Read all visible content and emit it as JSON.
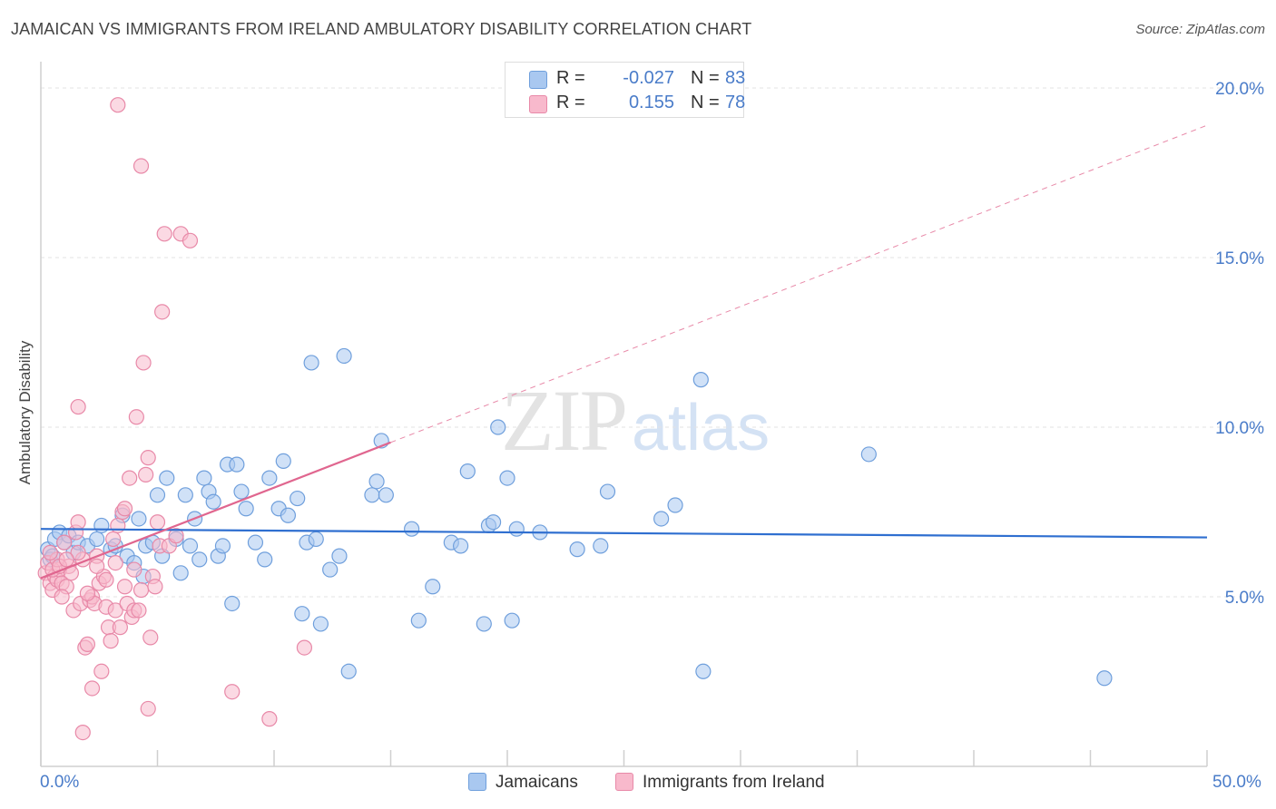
{
  "title": "JAMAICAN VS IMMIGRANTS FROM IRELAND AMBULATORY DISABILITY CORRELATION CHART",
  "source": "Source: ZipAtlas.com",
  "watermark": {
    "zip": "ZIP",
    "atlas": "atlas"
  },
  "legend_top": {
    "rows": [
      {
        "r_label": "R =",
        "r_value": "-0.027",
        "n_label": "N =",
        "n_value": "83",
        "color": "#a9c8f0",
        "border": "#6f9fdc"
      },
      {
        "r_label": "R =",
        "r_value": "0.155",
        "n_label": "N =",
        "n_value": "78",
        "color": "#f8b9cc",
        "border": "#e889a8"
      }
    ]
  },
  "legend_bottom": [
    {
      "label": "Jamaicans",
      "color": "#a9c8f0",
      "border": "#6f9fdc"
    },
    {
      "label": "Immigrants from Ireland",
      "color": "#f8b9cc",
      "border": "#e889a8"
    }
  ],
  "chart_data": {
    "type": "scatter",
    "title": "JAMAICAN VS IMMIGRANTS FROM IRELAND AMBULATORY DISABILITY CORRELATION CHART",
    "xlabel": "",
    "ylabel": "Ambulatory Disability",
    "xlim": [
      0,
      50
    ],
    "ylim": [
      0,
      20.5
    ],
    "x_tick_labels": [
      "0.0%",
      "50.0%"
    ],
    "y_ticks": [
      5,
      10,
      15,
      20
    ],
    "y_tick_labels": [
      "5.0%",
      "10.0%",
      "15.0%",
      "20.0%"
    ],
    "grid": true,
    "series": [
      {
        "name": "Jamaicans",
        "color": "#6f9fdc",
        "fill": "#a9c8f0",
        "trend": {
          "x": [
            0,
            50
          ],
          "y": [
            7.0,
            6.75
          ],
          "style": "solid",
          "color": "#2f6fd0"
        },
        "points": [
          [
            0.3,
            6.4
          ],
          [
            0.4,
            6.1
          ],
          [
            0.5,
            6.2
          ],
          [
            0.6,
            6.7
          ],
          [
            0.8,
            6.9
          ],
          [
            1.0,
            6.6
          ],
          [
            1.2,
            6.8
          ],
          [
            1.4,
            6.3
          ],
          [
            1.6,
            6.6
          ],
          [
            2.0,
            6.5
          ],
          [
            2.4,
            6.7
          ],
          [
            2.6,
            7.1
          ],
          [
            3.0,
            6.4
          ],
          [
            3.2,
            6.5
          ],
          [
            3.5,
            7.4
          ],
          [
            3.7,
            6.2
          ],
          [
            4.0,
            6.0
          ],
          [
            4.2,
            7.3
          ],
          [
            4.4,
            5.6
          ],
          [
            4.5,
            6.5
          ],
          [
            4.8,
            6.6
          ],
          [
            5.0,
            8.0
          ],
          [
            5.2,
            6.2
          ],
          [
            5.4,
            8.5
          ],
          [
            5.8,
            6.7
          ],
          [
            6.0,
            5.7
          ],
          [
            6.2,
            8.0
          ],
          [
            6.4,
            6.5
          ],
          [
            6.6,
            7.3
          ],
          [
            6.8,
            6.1
          ],
          [
            7.0,
            8.5
          ],
          [
            7.2,
            8.1
          ],
          [
            7.4,
            7.8
          ],
          [
            7.6,
            6.2
          ],
          [
            7.8,
            6.5
          ],
          [
            8.0,
            8.9
          ],
          [
            8.2,
            4.8
          ],
          [
            8.4,
            8.9
          ],
          [
            8.6,
            8.1
          ],
          [
            8.8,
            7.6
          ],
          [
            9.2,
            6.6
          ],
          [
            9.6,
            6.1
          ],
          [
            9.8,
            8.5
          ],
          [
            10.2,
            7.6
          ],
          [
            10.4,
            9.0
          ],
          [
            10.6,
            7.4
          ],
          [
            11.0,
            7.9
          ],
          [
            11.2,
            4.5
          ],
          [
            11.4,
            6.6
          ],
          [
            11.6,
            11.9
          ],
          [
            11.8,
            6.7
          ],
          [
            12.0,
            4.2
          ],
          [
            12.4,
            5.8
          ],
          [
            12.8,
            6.2
          ],
          [
            13.0,
            12.1
          ],
          [
            13.2,
            2.8
          ],
          [
            14.2,
            8.0
          ],
          [
            14.4,
            8.4
          ],
          [
            14.6,
            9.6
          ],
          [
            14.8,
            8.0
          ],
          [
            15.9,
            7.0
          ],
          [
            16.2,
            4.3
          ],
          [
            16.8,
            5.3
          ],
          [
            17.6,
            6.6
          ],
          [
            18.0,
            6.5
          ],
          [
            18.3,
            8.7
          ],
          [
            19.2,
            7.1
          ],
          [
            19.4,
            7.2
          ],
          [
            19.0,
            4.2
          ],
          [
            19.6,
            10.0
          ],
          [
            20.0,
            8.5
          ],
          [
            20.2,
            4.3
          ],
          [
            20.4,
            7.0
          ],
          [
            21.4,
            6.9
          ],
          [
            23.0,
            6.4
          ],
          [
            24.0,
            6.5
          ],
          [
            24.3,
            8.1
          ],
          [
            26.6,
            7.3
          ],
          [
            27.2,
            7.7
          ],
          [
            28.3,
            11.4
          ],
          [
            28.4,
            2.8
          ],
          [
            35.5,
            9.2
          ],
          [
            45.6,
            2.6
          ]
        ]
      },
      {
        "name": "Immigrants from Ireland",
        "color": "#e889a8",
        "fill": "#f8b9cc",
        "trend": {
          "x": [
            0,
            15
          ],
          "y": [
            5.55,
            9.55
          ],
          "style": "solid",
          "color": "#e0668f",
          "extension_x": [
            15,
            50
          ],
          "extension_y": [
            9.55,
            18.9
          ]
        },
        "points": [
          [
            0.2,
            5.7
          ],
          [
            0.3,
            6.0
          ],
          [
            0.4,
            5.4
          ],
          [
            0.5,
            5.2
          ],
          [
            0.6,
            5.6
          ],
          [
            0.7,
            5.5
          ],
          [
            0.8,
            5.8
          ],
          [
            0.9,
            5.4
          ],
          [
            1.0,
            6.6
          ],
          [
            1.1,
            5.3
          ],
          [
            1.2,
            5.9
          ],
          [
            1.4,
            4.6
          ],
          [
            1.5,
            6.9
          ],
          [
            1.6,
            7.2
          ],
          [
            1.7,
            4.8
          ],
          [
            1.8,
            6.1
          ],
          [
            1.9,
            3.5
          ],
          [
            2.0,
            3.6
          ],
          [
            2.1,
            4.9
          ],
          [
            2.2,
            5.0
          ],
          [
            2.3,
            4.8
          ],
          [
            2.4,
            6.2
          ],
          [
            2.5,
            5.4
          ],
          [
            2.6,
            2.8
          ],
          [
            2.7,
            5.6
          ],
          [
            2.8,
            4.7
          ],
          [
            2.9,
            4.1
          ],
          [
            3.0,
            3.7
          ],
          [
            3.1,
            6.7
          ],
          [
            3.2,
            4.6
          ],
          [
            3.3,
            7.1
          ],
          [
            3.4,
            4.1
          ],
          [
            3.5,
            7.5
          ],
          [
            3.6,
            7.6
          ],
          [
            3.7,
            4.8
          ],
          [
            3.8,
            8.5
          ],
          [
            3.9,
            4.4
          ],
          [
            4.0,
            4.6
          ],
          [
            4.1,
            10.3
          ],
          [
            4.2,
            4.6
          ],
          [
            4.3,
            5.2
          ],
          [
            4.4,
            11.9
          ],
          [
            4.5,
            8.6
          ],
          [
            4.6,
            9.1
          ],
          [
            4.7,
            3.8
          ],
          [
            4.8,
            5.6
          ],
          [
            4.9,
            5.3
          ],
          [
            5.0,
            7.2
          ],
          [
            5.1,
            6.5
          ],
          [
            5.2,
            13.4
          ],
          [
            5.3,
            15.7
          ],
          [
            5.5,
            6.5
          ],
          [
            5.8,
            6.8
          ],
          [
            6.0,
            15.7
          ],
          [
            6.4,
            15.5
          ],
          [
            1.6,
            10.6
          ],
          [
            3.3,
            19.5
          ],
          [
            4.3,
            17.7
          ],
          [
            1.8,
            1.0
          ],
          [
            2.2,
            2.3
          ],
          [
            4.6,
            1.7
          ],
          [
            8.2,
            2.2
          ],
          [
            9.8,
            1.4
          ],
          [
            11.3,
            3.5
          ],
          [
            0.5,
            5.8
          ],
          [
            0.7,
            6.1
          ],
          [
            0.9,
            5.0
          ],
          [
            1.3,
            5.7
          ],
          [
            1.6,
            6.3
          ],
          [
            2.0,
            5.1
          ],
          [
            2.4,
            5.9
          ],
          [
            2.8,
            5.5
          ],
          [
            3.2,
            6.0
          ],
          [
            3.6,
            5.3
          ],
          [
            4.0,
            5.8
          ],
          [
            0.4,
            6.3
          ],
          [
            0.8,
            5.9
          ],
          [
            1.1,
            6.1
          ]
        ]
      }
    ]
  }
}
